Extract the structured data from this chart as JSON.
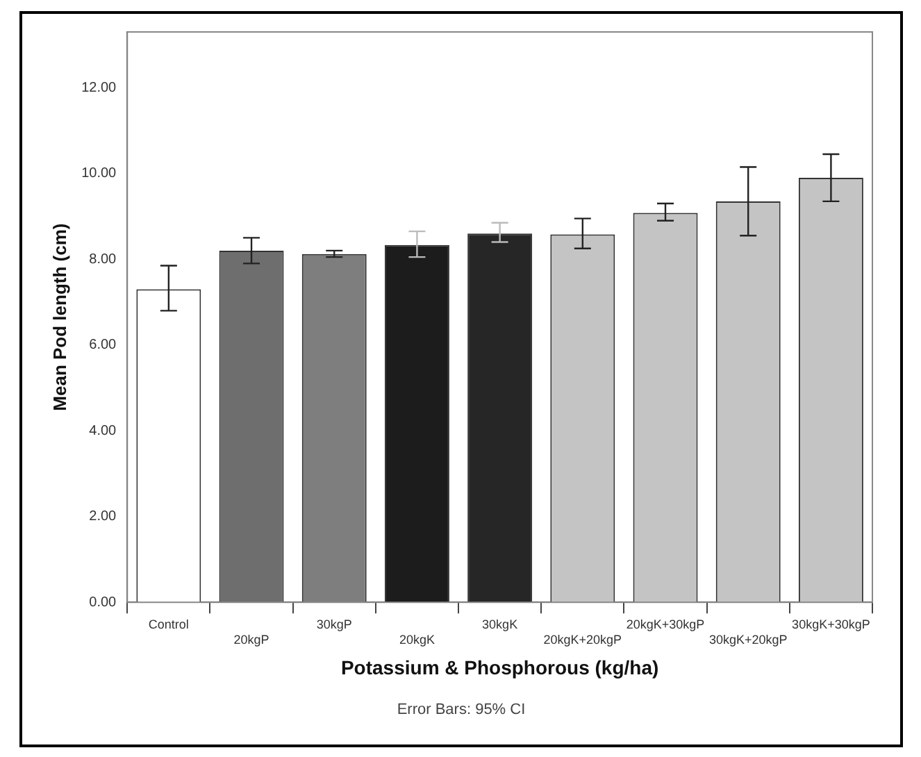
{
  "chart_data": {
    "type": "bar",
    "xlabel": "Potassium & Phosphorous (kg/ha)",
    "ylabel": "Mean Pod length (cm)",
    "categories": [
      "Control",
      "20kgP",
      "30kgP",
      "20kgK",
      "30kgK",
      "20kgK+20kgP",
      "20kgK+30kgP",
      "30kgK+20kgP",
      "30kgK+30kgP"
    ],
    "values": [
      7.3,
      8.2,
      8.12,
      8.33,
      8.6,
      8.58,
      9.08,
      9.35,
      9.9
    ],
    "errors": [
      [
        6.8,
        7.85
      ],
      [
        7.9,
        8.5
      ],
      [
        8.05,
        8.2
      ],
      [
        8.05,
        8.65
      ],
      [
        8.4,
        8.85
      ],
      [
        8.25,
        8.95
      ],
      [
        8.9,
        9.3
      ],
      [
        8.55,
        10.15
      ],
      [
        9.35,
        10.45
      ]
    ],
    "colors": [
      "#ffffff",
      "#6e6e6e",
      "#7e7e7e",
      "#1c1c1c",
      "#262626",
      "#c4c4c4",
      "#c4c4c4",
      "#c4c4c4",
      "#c4c4c4"
    ],
    "ylim": [
      0,
      13.3
    ],
    "yticks": [
      {
        "value": 0,
        "label": "0.00"
      },
      {
        "value": 2,
        "label": "2.00"
      },
      {
        "value": 4,
        "label": "4.00"
      },
      {
        "value": 6,
        "label": "6.00"
      },
      {
        "value": 8,
        "label": "8.00"
      },
      {
        "value": 10,
        "label": "10.00"
      },
      {
        "value": 12,
        "label": "12.00"
      }
    ],
    "grid": false,
    "legend": false,
    "annotations": [
      "Error Bars: 95% CI"
    ]
  }
}
